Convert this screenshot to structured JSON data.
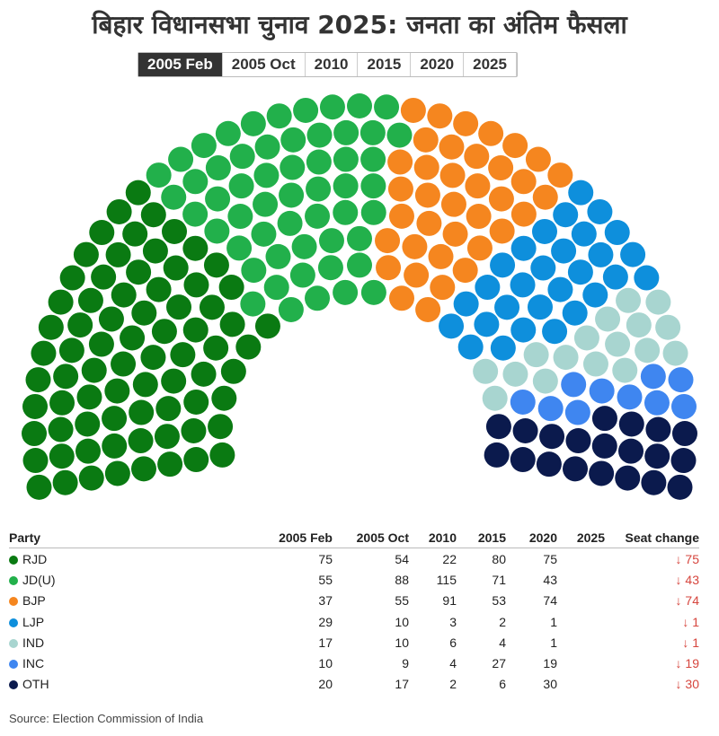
{
  "title": "बिहार विधानसभा चुनाव 2025: जनता का अंतिम फैसला",
  "tabs": [
    "2005 Feb",
    "2005 Oct",
    "2010",
    "2015",
    "2020",
    "2025"
  ],
  "selected_tab": 0,
  "colors": [
    "#0a7a12",
    "#22b04b",
    "#f5861f",
    "#0e8fdc",
    "#a8d5d0",
    "#3f86f0",
    "#0b1a4d"
  ],
  "table": {
    "header": [
      "Party",
      "2005 Feb",
      "2005 Oct",
      "2010",
      "2015",
      "2020",
      "2025",
      "Seat change"
    ],
    "rows": [
      [
        "RJD",
        75,
        54,
        22,
        80,
        75,
        null,
        "↓ 75"
      ],
      [
        "JD(U)",
        55,
        88,
        115,
        71,
        43,
        null,
        "↓ 43"
      ],
      [
        "BJP",
        37,
        55,
        91,
        53,
        74,
        null,
        "↓ 74"
      ],
      [
        "LJP",
        29,
        10,
        3,
        2,
        1,
        null,
        "↓ 1"
      ],
      [
        "IND",
        17,
        10,
        6,
        4,
        1,
        null,
        "↓ 1"
      ],
      [
        "INC",
        10,
        9,
        4,
        27,
        19,
        null,
        "↓ 19"
      ],
      [
        "OTH",
        20,
        17,
        2,
        6,
        30,
        null,
        "↓ 30"
      ]
    ]
  },
  "source": "Source: Election Commission of India"
}
